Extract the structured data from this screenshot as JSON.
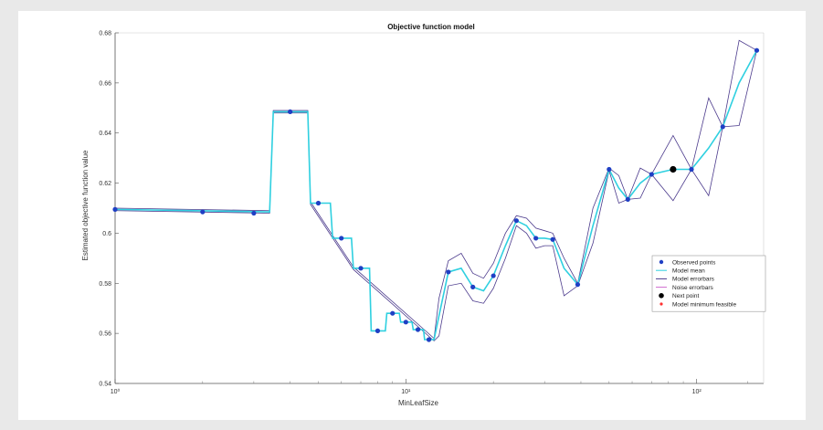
{
  "chart_data": {
    "type": "line",
    "title": "Objective function model",
    "xlabel": "MinLeafSize",
    "ylabel": "Estimated objective function value",
    "xscale": "log",
    "xlim": [
      1,
      170
    ],
    "ylim": [
      0.54,
      0.68
    ],
    "x_ticks": [
      1,
      10,
      100
    ],
    "x_tick_labels": [
      "10⁰",
      "10¹",
      "10²"
    ],
    "y_ticks": [
      0.54,
      0.56,
      0.58,
      0.6,
      0.62,
      0.64,
      0.66,
      0.68
    ],
    "y_tick_labels": [
      "0.54",
      "0.56",
      "0.58",
      "0.6",
      "0.62",
      "0.64",
      "0.66",
      "0.68"
    ],
    "legend_position": "right-middle",
    "grid": false,
    "series": [
      {
        "name": "Observed points",
        "kind": "markers",
        "color": "#1f3fc4",
        "points": [
          [
            1,
            0.6095
          ],
          [
            2,
            0.6085
          ],
          [
            3,
            0.608
          ],
          [
            4,
            0.6485
          ],
          [
            5,
            0.612
          ],
          [
            6,
            0.598
          ],
          [
            7,
            0.586
          ],
          [
            8,
            0.561
          ],
          [
            9,
            0.568
          ],
          [
            10,
            0.5645
          ],
          [
            11,
            0.5615
          ],
          [
            12,
            0.5575
          ],
          [
            14,
            0.5845
          ],
          [
            17,
            0.5785
          ],
          [
            20,
            0.583
          ],
          [
            24,
            0.605
          ],
          [
            28,
            0.598
          ],
          [
            32,
            0.5975
          ],
          [
            39,
            0.5795
          ],
          [
            50,
            0.6255
          ],
          [
            58,
            0.6135
          ],
          [
            70,
            0.6235
          ],
          [
            96,
            0.6255
          ],
          [
            123,
            0.6425
          ],
          [
            161,
            0.673
          ]
        ]
      },
      {
        "name": "Model mean",
        "kind": "line",
        "color": "#2fd0e0",
        "points": [
          [
            1,
            0.6095
          ],
          [
            3.4,
            0.6085
          ],
          [
            3.5,
            0.6485
          ],
          [
            4.6,
            0.6485
          ],
          [
            4.7,
            0.612
          ],
          [
            5.5,
            0.612
          ],
          [
            5.6,
            0.598
          ],
          [
            6.5,
            0.598
          ],
          [
            6.6,
            0.586
          ],
          [
            7.5,
            0.586
          ],
          [
            7.6,
            0.561
          ],
          [
            8.5,
            0.561
          ],
          [
            8.6,
            0.568
          ],
          [
            9.5,
            0.568
          ],
          [
            9.6,
            0.5645
          ],
          [
            10.5,
            0.5645
          ],
          [
            10.6,
            0.5615
          ],
          [
            11.5,
            0.5615
          ],
          [
            11.6,
            0.5575
          ],
          [
            12.5,
            0.5575
          ],
          [
            13.0,
            0.567
          ],
          [
            14,
            0.5845
          ],
          [
            15.5,
            0.586
          ],
          [
            17,
            0.5785
          ],
          [
            18.5,
            0.577
          ],
          [
            20,
            0.583
          ],
          [
            22,
            0.595
          ],
          [
            24,
            0.605
          ],
          [
            26,
            0.603
          ],
          [
            28,
            0.598
          ],
          [
            30,
            0.598
          ],
          [
            32,
            0.5975
          ],
          [
            35,
            0.586
          ],
          [
            39,
            0.5795
          ],
          [
            44,
            0.603
          ],
          [
            50,
            0.6255
          ],
          [
            54,
            0.618
          ],
          [
            58,
            0.6135
          ],
          [
            64,
            0.62
          ],
          [
            70,
            0.6235
          ],
          [
            83,
            0.6255
          ],
          [
            96,
            0.6255
          ],
          [
            110,
            0.634
          ],
          [
            123,
            0.6425
          ],
          [
            140,
            0.66
          ],
          [
            161,
            0.673
          ]
        ]
      },
      {
        "name": "Model errorbars",
        "kind": "band",
        "color": "#4b3a8c",
        "upper": [
          [
            1,
            0.61
          ],
          [
            3.4,
            0.609
          ],
          [
            3.5,
            0.649
          ],
          [
            4.6,
            0.649
          ],
          [
            4.7,
            0.6125
          ],
          [
            6.6,
            0.5865
          ],
          [
            12.5,
            0.558
          ],
          [
            13.0,
            0.574
          ],
          [
            14,
            0.589
          ],
          [
            15.5,
            0.592
          ],
          [
            17,
            0.584
          ],
          [
            18.5,
            0.582
          ],
          [
            20,
            0.588
          ],
          [
            22,
            0.6
          ],
          [
            24,
            0.607
          ],
          [
            26,
            0.606
          ],
          [
            28,
            0.602
          ],
          [
            30,
            0.601
          ],
          [
            32,
            0.6
          ],
          [
            35,
            0.59
          ],
          [
            39,
            0.58
          ],
          [
            44,
            0.61
          ],
          [
            50,
            0.626
          ],
          [
            54,
            0.623
          ],
          [
            58,
            0.6135
          ],
          [
            64,
            0.626
          ],
          [
            70,
            0.6235
          ],
          [
            83,
            0.639
          ],
          [
            96,
            0.6255
          ],
          [
            110,
            0.654
          ],
          [
            123,
            0.6425
          ],
          [
            140,
            0.677
          ],
          [
            161,
            0.673
          ]
        ],
        "lower": [
          [
            1,
            0.609
          ],
          [
            3.4,
            0.608
          ],
          [
            3.5,
            0.648
          ],
          [
            4.6,
            0.648
          ],
          [
            4.7,
            0.6115
          ],
          [
            6.6,
            0.5855
          ],
          [
            12.5,
            0.557
          ],
          [
            13.0,
            0.559
          ],
          [
            14,
            0.579
          ],
          [
            15.5,
            0.58
          ],
          [
            17,
            0.573
          ],
          [
            18.5,
            0.572
          ],
          [
            20,
            0.578
          ],
          [
            22,
            0.59
          ],
          [
            24,
            0.603
          ],
          [
            26,
            0.6
          ],
          [
            28,
            0.594
          ],
          [
            30,
            0.595
          ],
          [
            32,
            0.595
          ],
          [
            35,
            0.575
          ],
          [
            39,
            0.579
          ],
          [
            44,
            0.596
          ],
          [
            50,
            0.625
          ],
          [
            54,
            0.612
          ],
          [
            58,
            0.6135
          ],
          [
            64,
            0.614
          ],
          [
            70,
            0.6235
          ],
          [
            83,
            0.613
          ],
          [
            96,
            0.6255
          ],
          [
            110,
            0.615
          ],
          [
            123,
            0.6425
          ],
          [
            140,
            0.643
          ],
          [
            161,
            0.673
          ]
        ]
      },
      {
        "name": "Noise errorbars",
        "kind": "line",
        "color": "#d06ad0"
      },
      {
        "name": "Next point",
        "kind": "markers",
        "color": "#000000",
        "points": [
          [
            83,
            0.6255
          ]
        ]
      },
      {
        "name": "Model minimum feasible",
        "kind": "markers",
        "color": "#ff3030"
      }
    ]
  }
}
